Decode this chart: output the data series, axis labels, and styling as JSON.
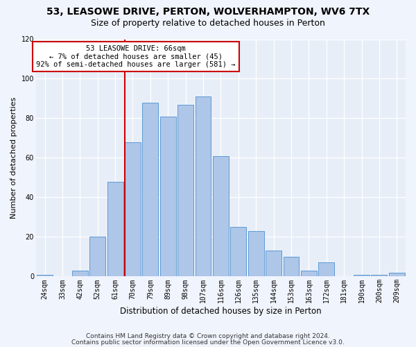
{
  "title1": "53, LEASOWE DRIVE, PERTON, WOLVERHAMPTON, WV6 7TX",
  "title2": "Size of property relative to detached houses in Perton",
  "xlabel": "Distribution of detached houses by size in Perton",
  "ylabel": "Number of detached properties",
  "categories": [
    "24sqm",
    "33sqm",
    "42sqm",
    "52sqm",
    "61sqm",
    "70sqm",
    "79sqm",
    "89sqm",
    "98sqm",
    "107sqm",
    "116sqm",
    "126sqm",
    "135sqm",
    "144sqm",
    "153sqm",
    "163sqm",
    "172sqm",
    "181sqm",
    "190sqm",
    "200sqm",
    "209sqm"
  ],
  "values": [
    1,
    0,
    3,
    20,
    48,
    68,
    88,
    81,
    87,
    91,
    61,
    25,
    23,
    13,
    10,
    3,
    7,
    0,
    1,
    1,
    2
  ],
  "bar_color": "#aec6e8",
  "bar_edge_color": "#5b9bd5",
  "vline_color": "#cc0000",
  "annotation_box_text": "53 LEASOWE DRIVE: 66sqm\n← 7% of detached houses are smaller (45)\n92% of semi-detached houses are larger (581) →",
  "annotation_box_color": "#cc0000",
  "ylim": [
    0,
    120
  ],
  "footer1": "Contains HM Land Registry data © Crown copyright and database right 2024.",
  "footer2": "Contains public sector information licensed under the Open Government Licence v3.0.",
  "background_color": "#e8eef8",
  "fig_background_color": "#f0f4fc",
  "grid_color": "#ffffff",
  "title1_fontsize": 10,
  "title2_fontsize": 9,
  "xlabel_fontsize": 8.5,
  "ylabel_fontsize": 8,
  "tick_fontsize": 7,
  "footer_fontsize": 6.5,
  "ann_fontsize": 7.5
}
